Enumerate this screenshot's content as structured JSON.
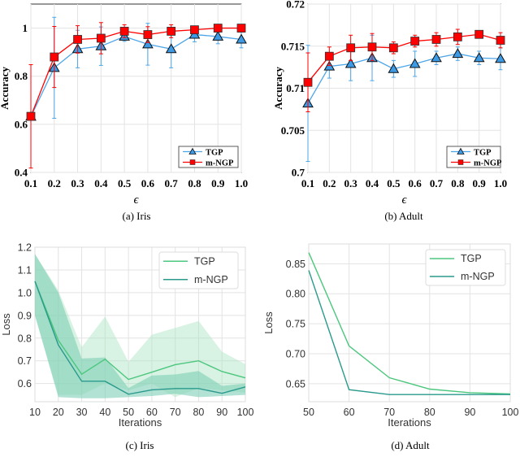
{
  "chart_data": [
    {
      "type": "line",
      "panel": "top-left",
      "caption": "(a) Iris",
      "xlabel": "ϵ",
      "ylabel": "Accuracy",
      "x": [
        0.1,
        0.2,
        0.3,
        0.4,
        0.5,
        0.6,
        0.7,
        0.8,
        0.9,
        1.0
      ],
      "xtick_labels": [
        "0.1",
        "0.2",
        "0.3",
        "0.4",
        "0.5",
        "0.6",
        "0.7",
        "0.8",
        "0.9",
        "1.0"
      ],
      "ylim": [
        0.4,
        1.1
      ],
      "yticks": [
        0.4,
        0.6,
        0.8,
        1
      ],
      "ytick_labels": [
        "0.4",
        "0.6",
        "0.8",
        "1"
      ],
      "grid": true,
      "legend": "bottom-right",
      "series": [
        {
          "name": "TGP",
          "color": "#4da6e8",
          "marker": "triangle",
          "values": [
            0.632,
            0.835,
            0.913,
            0.925,
            0.965,
            0.933,
            0.913,
            0.973,
            0.965,
            0.953
          ],
          "errors": [
            0.0,
            0.21,
            0.078,
            0.08,
            0.02,
            0.087,
            0.078,
            0.03,
            0.03,
            0.035
          ]
        },
        {
          "name": "m-NGP",
          "color": "#ff0000",
          "marker": "square",
          "values": [
            0.633,
            0.88,
            0.953,
            0.958,
            0.987,
            0.973,
            0.987,
            0.993,
            1.0,
            1.0
          ],
          "errors": [
            0.215,
            0.127,
            0.057,
            0.065,
            0.027,
            0.033,
            0.027,
            0.01,
            0.0,
            0.0
          ]
        }
      ]
    },
    {
      "type": "line",
      "panel": "top-right",
      "caption": "(b) Adult",
      "xlabel": "ϵ",
      "ylabel": "Accuracy",
      "x": [
        0.1,
        0.2,
        0.3,
        0.4,
        0.5,
        0.6,
        0.7,
        0.8,
        0.9,
        1.0
      ],
      "xtick_labels": [
        "0.1",
        "0.2",
        "0.3",
        "0.4",
        "0.5",
        "0.6",
        "0.7",
        "0.8",
        "0.9",
        "1.0"
      ],
      "ylim": [
        0.7,
        0.72
      ],
      "yticks": [
        0.7,
        0.705,
        0.71,
        0.715,
        0.72
      ],
      "ytick_labels": [
        "0.7",
        "0.705",
        "0.71",
        "0.715",
        "0.72"
      ],
      "grid": true,
      "legend": "bottom-right",
      "series": [
        {
          "name": "TGP",
          "color": "#4da6e8",
          "marker": "triangle",
          "values": [
            0.7082,
            0.7126,
            0.7129,
            0.7136,
            0.7123,
            0.7129,
            0.7136,
            0.7141,
            0.7136,
            0.7135
          ],
          "errors": [
            0.0069,
            0.0014,
            0.002,
            0.0027,
            0.001,
            0.0015,
            0.0008,
            0.0008,
            0.0008,
            0.0013
          ]
        },
        {
          "name": "m-NGP",
          "color": "#ff0000",
          "marker": "square",
          "values": [
            0.7107,
            0.7138,
            0.7148,
            0.7149,
            0.7148,
            0.7156,
            0.7158,
            0.7161,
            0.7164,
            0.7157
          ],
          "errors": [
            0.0035,
            0.0011,
            0.0015,
            0.0016,
            0.0007,
            0.0007,
            0.0008,
            0.0009,
            0.0003,
            0.0009
          ]
        }
      ]
    },
    {
      "type": "area",
      "panel": "bottom-left",
      "caption": "(c) Iris",
      "xlabel": "Iterations",
      "ylabel": "Loss",
      "x": [
        10,
        20,
        30,
        40,
        50,
        60,
        70,
        80,
        90,
        100
      ],
      "xtick_labels": [
        "10",
        "20",
        "30",
        "40",
        "50",
        "60",
        "70",
        "80",
        "90",
        "100"
      ],
      "xlim": [
        10,
        100
      ],
      "ylim": [
        0.52,
        1.2
      ],
      "yticks": [
        0.6,
        0.7,
        0.8,
        0.9,
        1.0,
        1.1,
        1.2
      ],
      "ytick_labels": [
        "0.6",
        "0.7",
        "0.8",
        "0.9",
        "1.0",
        "1.1",
        "1.2"
      ],
      "grid": true,
      "legend": "top-right",
      "series": [
        {
          "name": "TGP",
          "color": "#4cc77e",
          "band_color": "#a8e2c0",
          "values": [
            1.05,
            0.79,
            0.641,
            0.707,
            0.618,
            0.65,
            0.683,
            0.7,
            0.653,
            0.625
          ],
          "upper": [
            1.17,
            1.01,
            0.76,
            0.895,
            0.695,
            0.815,
            0.845,
            0.875,
            0.74,
            0.685
          ],
          "lower": [
            0.9,
            0.55,
            0.55,
            0.6,
            0.57,
            0.6,
            0.54,
            0.58,
            0.57,
            0.56
          ]
        },
        {
          "name": "m-NGP",
          "color": "#2a9a8c",
          "band_color": "#7fcfb6",
          "values": [
            1.05,
            0.77,
            0.61,
            0.61,
            0.553,
            0.572,
            0.578,
            0.578,
            0.557,
            0.585
          ],
          "upper": [
            1.17,
            1.0,
            0.71,
            0.715,
            0.58,
            0.635,
            0.64,
            0.655,
            0.59,
            0.6
          ],
          "lower": [
            0.9,
            0.54,
            0.535,
            0.535,
            0.54,
            0.545,
            0.555,
            0.54,
            0.545,
            0.55
          ]
        }
      ]
    },
    {
      "type": "line",
      "panel": "bottom-right",
      "caption": "(d) Adult",
      "xlabel": "Iterations",
      "ylabel": "Loss",
      "x": [
        50,
        60,
        70,
        80,
        90,
        100
      ],
      "xtick_labels": [
        "50",
        "60",
        "70",
        "80",
        "90",
        "100"
      ],
      "xlim": [
        50,
        100
      ],
      "ylim": [
        0.62,
        0.883
      ],
      "yticks": [
        0.65,
        0.7,
        0.75,
        0.8,
        0.85
      ],
      "ytick_labels": [
        "0.65",
        "0.70",
        "0.75",
        "0.80",
        "0.85"
      ],
      "grid": true,
      "legend": "top-right",
      "series": [
        {
          "name": "TGP",
          "color": "#4cc77e",
          "values": [
            0.8686,
            0.713,
            0.66,
            0.641,
            0.635,
            0.633
          ]
        },
        {
          "name": "m-NGP",
          "color": "#2a9a8c",
          "values": [
            0.839,
            0.64,
            0.632,
            0.632,
            0.632,
            0.632
          ]
        }
      ]
    }
  ]
}
